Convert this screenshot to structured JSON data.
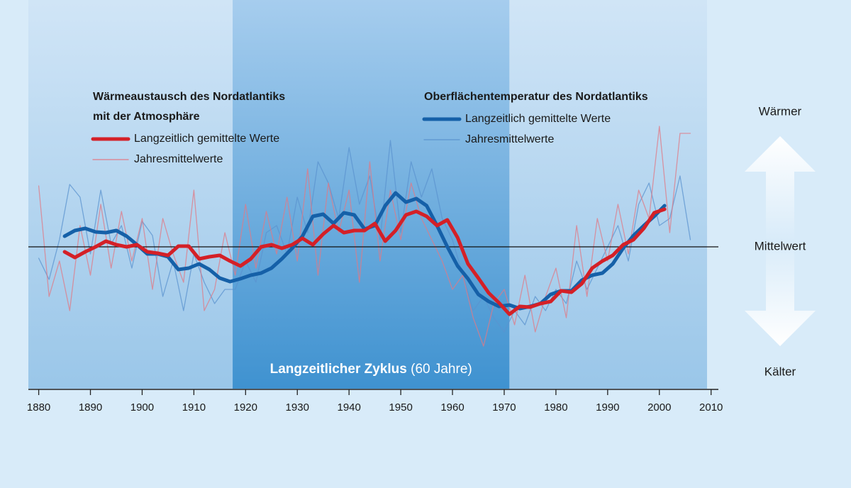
{
  "chart_data": {
    "type": "line",
    "xlim": [
      1878,
      2011
    ],
    "ylim": [
      -1,
      1
    ],
    "xticks": [
      1880,
      1890,
      1900,
      1910,
      1920,
      1930,
      1940,
      1950,
      1960,
      1970,
      1980,
      1990,
      2000,
      2010
    ],
    "reference_line": 0,
    "annotations": {
      "top": "Wärmer",
      "middle": "Mittelwert",
      "bottom": "Kälter"
    },
    "highlight": {
      "label": "Langzeitlicher Zyklus",
      "sublabel": "(60 Jahre)",
      "x": [
        1917.5,
        1971
      ]
    },
    "legend_groups": [
      {
        "title": [
          "Wärmeaustausch des Nordatlantiks",
          "mit der Atmosphäre"
        ]
      },
      {
        "title": [
          "Oberflächentemperatur des Nordatlantiks"
        ]
      }
    ],
    "series": [
      {
        "name": "Jahresmittelwerte",
        "group": 1,
        "color": "#5b93cf",
        "width": 1.3,
        "x": [
          1880,
          1882,
          1884,
          1886,
          1888,
          1890,
          1892,
          1894,
          1896,
          1898,
          1900,
          1902,
          1904,
          1906,
          1908,
          1910,
          1912,
          1914,
          1916,
          1918,
          1920,
          1922,
          1924,
          1926,
          1928,
          1930,
          1932,
          1934,
          1936,
          1938,
          1940,
          1942,
          1944,
          1946,
          1948,
          1950,
          1952,
          1954,
          1956,
          1958,
          1960,
          1962,
          1964,
          1966,
          1968,
          1970,
          1972,
          1974,
          1976,
          1978,
          1980,
          1982,
          1984,
          1986,
          1988,
          1990,
          1992,
          1994,
          1996,
          1998,
          2000,
          2002,
          2004,
          2006
        ],
        "values": [
          -0.08,
          -0.23,
          0.05,
          0.44,
          0.35,
          -0.05,
          0.4,
          0.02,
          0.15,
          -0.15,
          0.18,
          0.08,
          -0.35,
          -0.1,
          -0.45,
          -0.05,
          -0.25,
          -0.4,
          -0.3,
          -0.3,
          -0.1,
          -0.25,
          0.1,
          0.15,
          -0.05,
          0.35,
          0.1,
          0.6,
          0.45,
          0.2,
          0.7,
          0.3,
          0.5,
          0.05,
          0.75,
          0.1,
          0.6,
          0.35,
          0.55,
          0.2,
          0.05,
          -0.2,
          -0.45,
          -0.35,
          -0.5,
          -0.6,
          -0.45,
          -0.55,
          -0.35,
          -0.45,
          -0.3,
          -0.4,
          -0.1,
          -0.3,
          -0.15,
          0,
          0.15,
          -0.1,
          0.3,
          0.45,
          0.15,
          0.2,
          0.5,
          0.05
        ]
      },
      {
        "name": "Jahresmittelwerte",
        "group": 0,
        "color": "#e07a86",
        "width": 1.3,
        "x": [
          1880,
          1882,
          1884,
          1886,
          1888,
          1890,
          1892,
          1894,
          1896,
          1898,
          1900,
          1902,
          1904,
          1906,
          1908,
          1910,
          1912,
          1914,
          1916,
          1918,
          1920,
          1922,
          1924,
          1926,
          1928,
          1930,
          1932,
          1934,
          1936,
          1938,
          1940,
          1942,
          1944,
          1946,
          1948,
          1950,
          1952,
          1954,
          1956,
          1958,
          1960,
          1962,
          1964,
          1966,
          1968,
          1970,
          1972,
          1974,
          1976,
          1978,
          1980,
          1982,
          1984,
          1986,
          1988,
          1990,
          1992,
          1994,
          1996,
          1998,
          2000,
          2002,
          2004,
          2006
        ],
        "values": [
          0.43,
          -0.35,
          -0.1,
          -0.45,
          0.15,
          -0.2,
          0.3,
          -0.15,
          0.25,
          -0.1,
          0.2,
          -0.3,
          0.2,
          -0.05,
          -0.25,
          0.4,
          -0.45,
          -0.3,
          0.1,
          -0.2,
          0.3,
          -0.15,
          0.25,
          -0.05,
          0.35,
          -0.1,
          0.55,
          -0.2,
          0.45,
          0.1,
          0.4,
          -0.25,
          0.6,
          -0.1,
          0.4,
          0.05,
          0.45,
          0.2,
          0.05,
          -0.1,
          -0.3,
          -0.2,
          -0.5,
          -0.7,
          -0.4,
          -0.3,
          -0.55,
          -0.2,
          -0.6,
          -0.35,
          -0.15,
          -0.5,
          0.15,
          -0.35,
          0.2,
          -0.1,
          0.3,
          -0.05,
          0.4,
          0.2,
          0.85,
          0.1,
          0.8,
          0.8
        ]
      },
      {
        "name": "Langzeitlich gemittelte Werte",
        "group": 1,
        "color": "#1560a8",
        "width": 5,
        "x": [
          1885,
          1887,
          1889,
          1891,
          1893,
          1895,
          1897,
          1899,
          1901,
          1903,
          1905,
          1907,
          1909,
          1911,
          1913,
          1915,
          1917,
          1919,
          1921,
          1923,
          1925,
          1927,
          1929,
          1931,
          1933,
          1935,
          1937,
          1939,
          1941,
          1943,
          1945,
          1947,
          1949,
          1951,
          1953,
          1955,
          1957,
          1959,
          1961,
          1963,
          1965,
          1967,
          1969,
          1971,
          1973,
          1975,
          1977,
          1979,
          1981,
          1983,
          1985,
          1987,
          1989,
          1991,
          1993,
          1995,
          1997,
          1999,
          2001
        ],
        "values": [
          0.075,
          0.115,
          0.13,
          0.105,
          0.1,
          0.115,
          0.075,
          0.015,
          -0.05,
          -0.05,
          -0.07,
          -0.16,
          -0.15,
          -0.12,
          -0.16,
          -0.22,
          -0.245,
          -0.225,
          -0.2,
          -0.185,
          -0.15,
          -0.085,
          -0.01,
          0.075,
          0.215,
          0.23,
          0.165,
          0.24,
          0.225,
          0.125,
          0.15,
          0.29,
          0.38,
          0.315,
          0.34,
          0.29,
          0.15,
          0,
          -0.135,
          -0.225,
          -0.335,
          -0.385,
          -0.42,
          -0.41,
          -0.435,
          -0.42,
          -0.4,
          -0.335,
          -0.31,
          -0.31,
          -0.235,
          -0.2,
          -0.185,
          -0.12,
          -0.01,
          0.08,
          0.15,
          0.215,
          0.29
        ]
      },
      {
        "name": "Langzeitlich gemittelte Werte",
        "group": 0,
        "color": "#d42027",
        "width": 5,
        "x": [
          1885,
          1887,
          1889,
          1891,
          1893,
          1895,
          1897,
          1899,
          1901,
          1903,
          1905,
          1907,
          1909,
          1911,
          1913,
          1915,
          1917,
          1919,
          1921,
          1923,
          1925,
          1927,
          1929,
          1931,
          1933,
          1935,
          1937,
          1939,
          1941,
          1943,
          1945,
          1947,
          1949,
          1951,
          1953,
          1955,
          1957,
          1959,
          1961,
          1963,
          1965,
          1967,
          1969,
          1971,
          1973,
          1975,
          1977,
          1979,
          1981,
          1983,
          1985,
          1987,
          1989,
          1991,
          1993,
          1995,
          1997,
          1999,
          2001
        ],
        "values": [
          -0.035,
          -0.075,
          -0.035,
          0,
          0.04,
          0.015,
          0,
          0.015,
          -0.035,
          -0.045,
          -0.06,
          0.005,
          0.005,
          -0.085,
          -0.07,
          -0.06,
          -0.1,
          -0.135,
          -0.085,
          0,
          0.015,
          -0.01,
          0.015,
          0.06,
          0.015,
          0.09,
          0.15,
          0.1,
          0.115,
          0.115,
          0.165,
          0.04,
          0.115,
          0.225,
          0.25,
          0.215,
          0.15,
          0.19,
          0.065,
          -0.12,
          -0.22,
          -0.325,
          -0.395,
          -0.475,
          -0.42,
          -0.425,
          -0.4,
          -0.385,
          -0.31,
          -0.32,
          -0.26,
          -0.15,
          -0.1,
          -0.06,
          0.015,
          0.05,
          0.13,
          0.24,
          0.265
        ]
      }
    ]
  }
}
